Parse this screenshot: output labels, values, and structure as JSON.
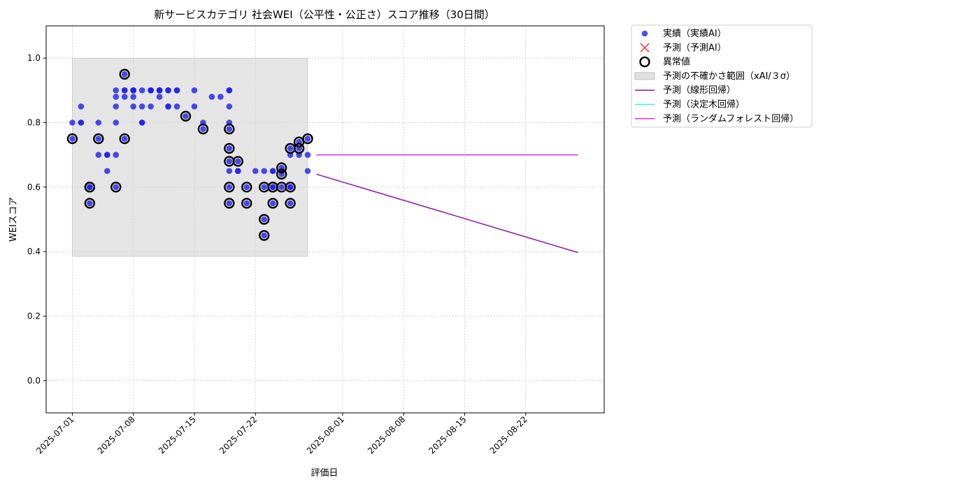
{
  "chart_data": {
    "type": "scatter",
    "title": "新サービスカテゴリ 社会WEI（公平性・公正さ）スコア推移（30日間）",
    "xlabel": "評価日",
    "ylabel": "WEIスコア",
    "xlim": [
      "2025-06-28",
      "2025-08-31"
    ],
    "ylim": [
      -0.1,
      1.1
    ],
    "grid": true,
    "legend_position": "outside-top-right",
    "x_ticks": [
      "2025-07-01",
      "2025-07-08",
      "2025-07-15",
      "2025-07-22",
      "2025-08-01",
      "2025-08-08",
      "2025-08-15",
      "2025-08-22"
    ],
    "y_ticks": [
      "0.0",
      "0.2",
      "0.4",
      "0.6",
      "0.8",
      "1.0"
    ],
    "uncertainty_band": {
      "x": [
        "2025-07-01",
        "2025-07-28"
      ],
      "y": [
        0.385,
        1.0
      ]
    },
    "series": [
      {
        "name": "実績（実績AI）",
        "kind": "scatter",
        "color": "#1f1fe6",
        "points": [
          [
            "2025-07-01",
            0.75
          ],
          [
            "2025-07-01",
            0.8
          ],
          [
            "2025-07-02",
            0.8
          ],
          [
            "2025-07-02",
            0.85
          ],
          [
            "2025-07-02",
            0.8
          ],
          [
            "2025-07-03",
            0.6
          ],
          [
            "2025-07-03",
            0.55
          ],
          [
            "2025-07-03",
            0.6
          ],
          [
            "2025-07-04",
            0.75
          ],
          [
            "2025-07-04",
            0.8
          ],
          [
            "2025-07-04",
            0.7
          ],
          [
            "2025-07-05",
            0.65
          ],
          [
            "2025-07-05",
            0.7
          ],
          [
            "2025-07-05",
            0.7
          ],
          [
            "2025-07-06",
            0.7
          ],
          [
            "2025-07-06",
            0.6
          ],
          [
            "2025-07-06",
            0.8
          ],
          [
            "2025-07-06",
            0.85
          ],
          [
            "2025-07-06",
            0.9
          ],
          [
            "2025-07-06",
            0.88
          ],
          [
            "2025-07-07",
            0.9
          ],
          [
            "2025-07-07",
            0.88
          ],
          [
            "2025-07-07",
            0.9
          ],
          [
            "2025-07-07",
            0.95
          ],
          [
            "2025-07-07",
            0.75
          ],
          [
            "2025-07-08",
            0.88
          ],
          [
            "2025-07-08",
            0.9
          ],
          [
            "2025-07-08",
            0.9
          ],
          [
            "2025-07-08",
            0.85
          ],
          [
            "2025-07-08",
            0.9
          ],
          [
            "2025-07-09",
            0.8
          ],
          [
            "2025-07-09",
            0.8
          ],
          [
            "2025-07-09",
            0.9
          ],
          [
            "2025-07-09",
            0.85
          ],
          [
            "2025-07-10",
            0.85
          ],
          [
            "2025-07-10",
            0.9
          ],
          [
            "2025-07-10",
            0.9
          ],
          [
            "2025-07-10",
            0.9
          ],
          [
            "2025-07-11",
            0.9
          ],
          [
            "2025-07-11",
            0.88
          ],
          [
            "2025-07-11",
            0.9
          ],
          [
            "2025-07-11",
            0.9
          ],
          [
            "2025-07-12",
            0.9
          ],
          [
            "2025-07-12",
            0.85
          ],
          [
            "2025-07-12",
            0.85
          ],
          [
            "2025-07-12",
            0.9
          ],
          [
            "2025-07-13",
            0.9
          ],
          [
            "2025-07-13",
            0.85
          ],
          [
            "2025-07-13",
            0.9
          ],
          [
            "2025-07-14",
            0.82
          ],
          [
            "2025-07-15",
            0.85
          ],
          [
            "2025-07-15",
            0.9
          ],
          [
            "2025-07-16",
            0.78
          ],
          [
            "2025-07-16",
            0.8
          ],
          [
            "2025-07-17",
            0.88
          ],
          [
            "2025-07-18",
            0.88
          ],
          [
            "2025-07-19",
            0.9
          ],
          [
            "2025-07-19",
            0.85
          ],
          [
            "2025-07-19",
            0.9
          ],
          [
            "2025-07-19",
            0.8
          ],
          [
            "2025-07-19",
            0.78
          ],
          [
            "2025-07-19",
            0.72
          ],
          [
            "2025-07-19",
            0.68
          ],
          [
            "2025-07-19",
            0.65
          ],
          [
            "2025-07-19",
            0.6
          ],
          [
            "2025-07-19",
            0.55
          ],
          [
            "2025-07-20",
            0.68
          ],
          [
            "2025-07-20",
            0.65
          ],
          [
            "2025-07-20",
            0.65
          ],
          [
            "2025-07-21",
            0.6
          ],
          [
            "2025-07-21",
            0.55
          ],
          [
            "2025-07-22",
            0.65
          ],
          [
            "2025-07-23",
            0.6
          ],
          [
            "2025-07-23",
            0.5
          ],
          [
            "2025-07-23",
            0.45
          ],
          [
            "2025-07-23",
            0.65
          ],
          [
            "2025-07-24",
            0.6
          ],
          [
            "2025-07-24",
            0.65
          ],
          [
            "2025-07-24",
            0.65
          ],
          [
            "2025-07-24",
            0.6
          ],
          [
            "2025-07-24",
            0.55
          ],
          [
            "2025-07-25",
            0.66
          ],
          [
            "2025-07-25",
            0.65
          ],
          [
            "2025-07-25",
            0.6
          ],
          [
            "2025-07-25",
            0.64
          ],
          [
            "2025-07-26",
            0.6
          ],
          [
            "2025-07-26",
            0.72
          ],
          [
            "2025-07-26",
            0.7
          ],
          [
            "2025-07-26",
            0.6
          ],
          [
            "2025-07-26",
            0.55
          ],
          [
            "2025-07-27",
            0.74
          ],
          [
            "2025-07-27",
            0.72
          ],
          [
            "2025-07-27",
            0.7
          ],
          [
            "2025-07-28",
            0.75
          ],
          [
            "2025-07-28",
            0.7
          ],
          [
            "2025-07-28",
            0.65
          ]
        ]
      },
      {
        "name": "予測（予測AI）",
        "kind": "scatter",
        "marker": "x",
        "color": "#ff3b3b",
        "points": []
      },
      {
        "name": "異常値",
        "kind": "scatter",
        "marker": "open-circle",
        "color": "#000000",
        "points": [
          [
            "2025-07-01",
            0.75
          ],
          [
            "2025-07-03",
            0.6
          ],
          [
            "2025-07-03",
            0.6
          ],
          [
            "2025-07-03",
            0.55
          ],
          [
            "2025-07-04",
            0.75
          ],
          [
            "2025-07-06",
            0.6
          ],
          [
            "2025-07-07",
            0.95
          ],
          [
            "2025-07-07",
            0.75
          ],
          [
            "2025-07-14",
            0.82
          ],
          [
            "2025-07-16",
            0.78
          ],
          [
            "2025-07-19",
            0.78
          ],
          [
            "2025-07-19",
            0.72
          ],
          [
            "2025-07-19",
            0.68
          ],
          [
            "2025-07-20",
            0.68
          ],
          [
            "2025-07-19",
            0.6
          ],
          [
            "2025-07-19",
            0.55
          ],
          [
            "2025-07-21",
            0.6
          ],
          [
            "2025-07-21",
            0.55
          ],
          [
            "2025-07-23",
            0.6
          ],
          [
            "2025-07-23",
            0.5
          ],
          [
            "2025-07-23",
            0.45
          ],
          [
            "2025-07-24",
            0.6
          ],
          [
            "2025-07-24",
            0.55
          ],
          [
            "2025-07-25",
            0.66
          ],
          [
            "2025-07-25",
            0.6
          ],
          [
            "2025-07-25",
            0.64
          ],
          [
            "2025-07-26",
            0.72
          ],
          [
            "2025-07-26",
            0.6
          ],
          [
            "2025-07-26",
            0.55
          ],
          [
            "2025-07-27",
            0.74
          ],
          [
            "2025-07-27",
            0.72
          ],
          [
            "2025-07-28",
            0.75
          ],
          [
            "2025-07-24",
            0.6
          ]
        ]
      },
      {
        "name": "予測の不確かさ範囲（xAI/３σ）",
        "kind": "band",
        "color": "#d3d3d3"
      },
      {
        "name": "予測（線形回帰）",
        "kind": "line",
        "color": "#8b2b9e",
        "points": [
          [
            "2025-07-29",
            0.64
          ],
          [
            "2025-08-28",
            0.397
          ]
        ]
      },
      {
        "name": "予測（決定木回帰）",
        "kind": "line",
        "color": "#2ff5f5",
        "points": [
          [
            "2025-07-29",
            0.7
          ],
          [
            "2025-08-28",
            0.7
          ]
        ]
      },
      {
        "name": "予測（ランダムフォレスト回帰）",
        "kind": "line",
        "color": "#e83de8",
        "points": [
          [
            "2025-07-29",
            0.7
          ],
          [
            "2025-08-28",
            0.7
          ]
        ]
      }
    ]
  }
}
